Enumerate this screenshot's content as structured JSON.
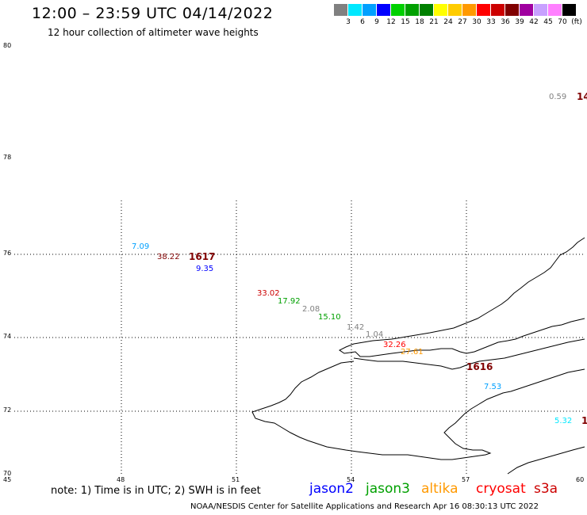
{
  "title": "12:00 – 23:59 UTC 04/14/2022",
  "subtitle": "12 hour collection of altimeter wave heights",
  "scale": {
    "labels": [
      "3",
      "6",
      "9",
      "12",
      "15",
      "18",
      "21",
      "24",
      "27",
      "30",
      "33",
      "36",
      "39",
      "42",
      "45",
      "70"
    ],
    "unit": "(ft)",
    "colors": [
      "#808080",
      "#00e8ff",
      "#00a0ff",
      "#0000ff",
      "#00d000",
      "#00a000",
      "#008000",
      "#ffff00",
      "#ffcc00",
      "#ff9900",
      "#ff0000",
      "#cc0000",
      "#800000",
      "#a000a0",
      "#c8a0ff",
      "#ff80ff",
      "#000000"
    ]
  },
  "axes": {
    "lat_labels": [
      "80",
      "78",
      "76",
      "74",
      "72",
      "70"
    ],
    "lon_labels": [
      "45",
      "48",
      "51",
      "54",
      "57",
      "60"
    ]
  },
  "observations": [
    {
      "text": "0.59",
      "color": "#808080"
    },
    {
      "text": "7.09",
      "color": "#00a0ff"
    },
    {
      "text": "38.22",
      "color": "#800000"
    },
    {
      "text": "9.35",
      "color": "#0000ff"
    },
    {
      "text": "33.02",
      "color": "#cc0000"
    },
    {
      "text": "17.92",
      "color": "#00a000"
    },
    {
      "text": "2.08",
      "color": "#808080"
    },
    {
      "text": "15.10",
      "color": "#00a000"
    },
    {
      "text": "1.42",
      "color": "#808080"
    },
    {
      "text": "1.04",
      "color": "#808080"
    },
    {
      "text": "32.26",
      "color": "#ff0000"
    },
    {
      "text": "27.61",
      "color": "#ff9900"
    },
    {
      "text": "7.53",
      "color": "#00a0ff"
    },
    {
      "text": "5.32",
      "color": "#00e8ff"
    }
  ],
  "pass_labels": [
    "1617",
    "1616",
    "14",
    "1"
  ],
  "note": "note:  1) Time is in UTC;  2) SWH is in feet",
  "satellites": [
    {
      "name": "jason2",
      "color": "#0000ff"
    },
    {
      "name": "jason3",
      "color": "#00a000"
    },
    {
      "name": "altika",
      "color": "#ff9900"
    },
    {
      "name": "cryosat",
      "color": "#ff0000"
    },
    {
      "name": "s3a",
      "color": "#cc0000"
    }
  ],
  "credit": "NOAA/NESDIS Center for Satellite Applications and Research    Apr 16 08:30:13 UTC 2022"
}
